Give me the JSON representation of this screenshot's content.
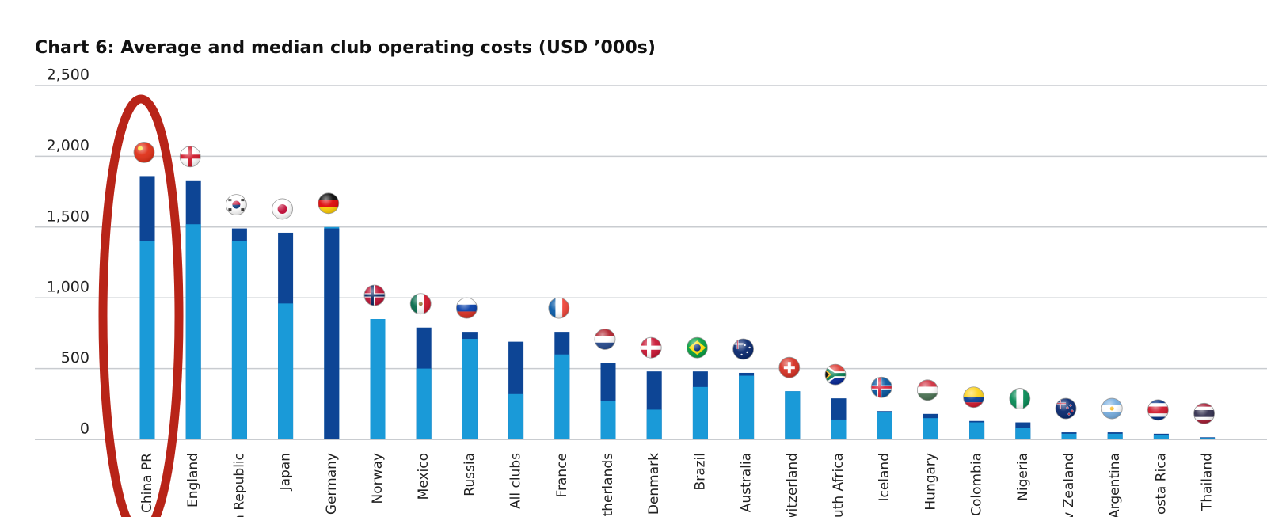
{
  "chart_data": {
    "type": "bar",
    "title": "Chart 6: Average and median club operating costs (USD ’000s)",
    "xlabel": "",
    "ylabel": "",
    "ylim": [
      0,
      2500
    ],
    "y_ticks": [
      "0",
      "500",
      "1,000",
      "1,500",
      "2,000",
      "2,500"
    ],
    "y_tick_values": [
      0,
      500,
      1000,
      1500,
      2000,
      2500
    ],
    "grid": true,
    "legend": "none",
    "categories": [
      "China PR",
      "England",
      "Korea Republic",
      "Japan",
      "Germany",
      "Norway",
      "Mexico",
      "Russia",
      "All clubs",
      "France",
      "Netherlands",
      "Denmark",
      "Brazil",
      "Australia",
      "Switzerland",
      "South Africa",
      "Iceland",
      "Hungary",
      "Colombia",
      "Nigeria",
      "New Zealand",
      "Argentina",
      "Costa Rica",
      "Thailand"
    ],
    "visible_labels": [
      "China PR",
      "England",
      "a Republic",
      "Japan",
      "Germany",
      "Norway",
      "Mexico",
      "Russia",
      "All clubs",
      "France",
      "therlands",
      "Denmark",
      "Brazil",
      "Australia",
      "witzerland",
      "uth Africa",
      "Iceland",
      "Hungary",
      "Colombia",
      "Nigeria",
      "v Zealand",
      "Argentina",
      "osta Rica",
      "Thailand"
    ],
    "series": [
      {
        "values": [
          1860,
          1830,
          1490,
          1460,
          1490,
          850,
          790,
          760,
          690,
          760,
          540,
          480,
          480,
          470,
          340,
          290,
          200,
          180,
          130,
          120,
          50,
          50,
          40,
          15
        ]
      },
      {
        "values": [
          1400,
          1520,
          1400,
          960,
          1500,
          850,
          500,
          710,
          320,
          600,
          270,
          210,
          370,
          450,
          340,
          140,
          190,
          150,
          120,
          80,
          40,
          40,
          30,
          10
        ]
      }
    ],
    "flags": [
      "cn",
      "gb-eng",
      "kr",
      "jp",
      "de",
      "no",
      "mx",
      "ru",
      "",
      "fr",
      "nl",
      "dk",
      "br",
      "au",
      "ch",
      "za",
      "is",
      "hu",
      "co",
      "ng",
      "nz",
      "ar",
      "cr",
      "th"
    ],
    "highlight": {
      "category": "China PR",
      "shape": "ellipse"
    },
    "colors": {
      "series_dark": "#0d4595",
      "series_light": "#1a9ad8",
      "grid": "#c9ccd0",
      "highlight": "#b82418",
      "flag_cn_red": "#de2910",
      "flag_cn_yellow": "#ffde00",
      "flag_eng_red": "#ce1124",
      "flag_kr_red": "#c60c30",
      "flag_kr_blue": "#003478",
      "flag_jp_red": "#bc002d",
      "flag_de_red": "#dd0000",
      "flag_de_gold": "#ffce00",
      "flag_no_red": "#ba0c2f",
      "flag_no_blue": "#00205b",
      "flag_mx_green": "#006847",
      "flag_mx_red": "#ce1126",
      "flag_ru_blue": "#0039a6",
      "flag_ru_red": "#d52b1e",
      "flag_fr_blue": "#0055a4",
      "flag_fr_red": "#ef4135",
      "flag_nl_red": "#ae1c28",
      "flag_nl_blue": "#21468b",
      "flag_dk_red": "#c8102e",
      "flag_br_green": "#009c3b",
      "flag_br_yellow": "#ffdf00",
      "flag_br_blue": "#002776",
      "flag_au_blue": "#012169",
      "flag_ch_red": "#d52b1e",
      "flag_za_green": "#007a4d",
      "flag_za_yellow": "#ffb612",
      "flag_za_red": "#de3831",
      "flag_za_blue": "#002395",
      "flag_is_blue": "#02529c",
      "flag_is_red": "#dc1e35",
      "flag_hu_red": "#ce2939",
      "flag_hu_green": "#477050",
      "flag_co_yellow": "#fcd116",
      "flag_co_blue": "#003893",
      "flag_co_red": "#ce1126",
      "flag_ng_green": "#008751",
      "flag_nz_blue": "#012169",
      "flag_ar_blue": "#74acdf",
      "flag_ar_sun": "#f6b40e",
      "flag_cr_blue": "#002b7f",
      "flag_cr_red": "#ce1126",
      "flag_th_red": "#a51931",
      "flag_th_blue": "#2d2a4a"
    }
  }
}
